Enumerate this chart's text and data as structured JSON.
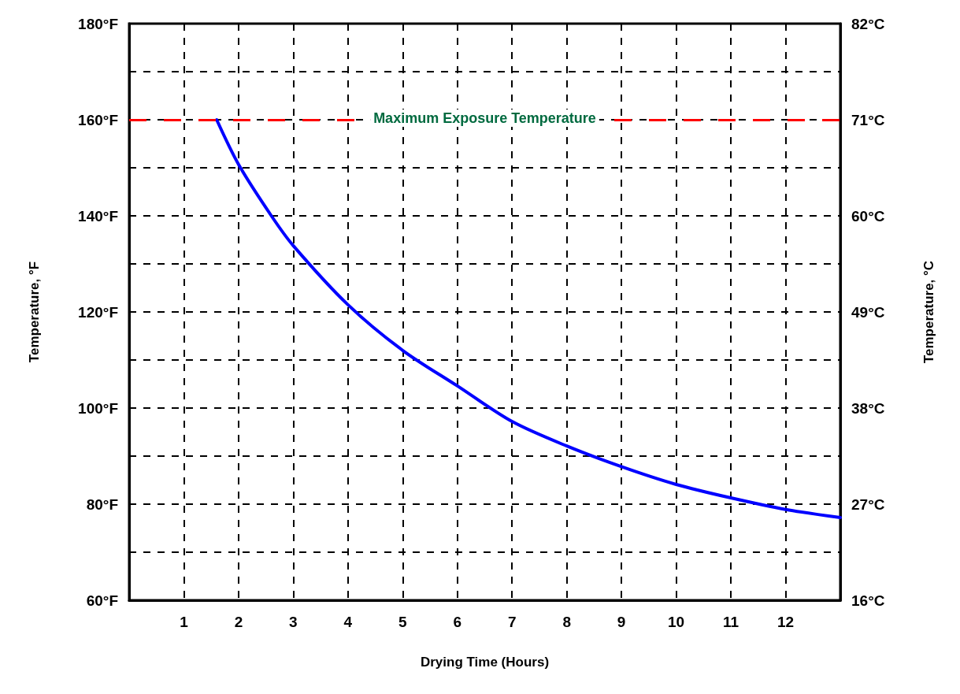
{
  "chart_data": {
    "type": "line",
    "xlabel": "Drying Time (Hours)",
    "ylabel": "Temperature, °F",
    "y2label": "Temperature, °C",
    "x": [
      1.6,
      2,
      2.6,
      3,
      4,
      5,
      6,
      7,
      8,
      9,
      10,
      11,
      12,
      13
    ],
    "series": [
      {
        "color": "#0000ff",
        "values": [
          160,
          150.7,
          140,
          133.8,
          121.5,
          112,
          104.6,
          97.2,
          92.1,
          87.8,
          84.1,
          81.3,
          78.9,
          77.2
        ]
      }
    ],
    "xlim": [
      0,
      13
    ],
    "xticks": [
      1,
      2,
      3,
      4,
      5,
      6,
      7,
      8,
      9,
      10,
      11,
      12
    ],
    "ylim": [
      60,
      180
    ],
    "yticks": [
      {
        "value": 60,
        "label": "60°F"
      },
      {
        "value": 70,
        "label": null
      },
      {
        "value": 80,
        "label": "80°F"
      },
      {
        "value": 90,
        "label": null
      },
      {
        "value": 100,
        "label": "100°F"
      },
      {
        "value": 110,
        "label": null
      },
      {
        "value": 120,
        "label": "120°F"
      },
      {
        "value": 130,
        "label": null
      },
      {
        "value": 140,
        "label": "140°F"
      },
      {
        "value": 150,
        "label": null
      },
      {
        "value": 160,
        "label": "160°F"
      },
      {
        "value": 170,
        "label": null
      },
      {
        "value": 180,
        "label": "180°F"
      }
    ],
    "y2lim": [
      15.56,
      82.22
    ],
    "y2ticks": [
      {
        "value": 15.56,
        "label": "16°C"
      },
      {
        "value": 26.67,
        "label": "27°C"
      },
      {
        "value": 37.78,
        "label": "38°C"
      },
      {
        "value": 48.89,
        "label": "49°C"
      },
      {
        "value": 60,
        "label": "60°C"
      },
      {
        "value": 71.11,
        "label": "71°C"
      },
      {
        "value": 82.22,
        "label": "82°C"
      }
    ],
    "ref_lines": [
      {
        "axis": "y",
        "value": 160,
        "label": "Maximum Exposure Temperature",
        "color": "#ff0000",
        "line_style": "dashed"
      }
    ],
    "grid": true,
    "marker": "none",
    "line_style": "solid"
  }
}
